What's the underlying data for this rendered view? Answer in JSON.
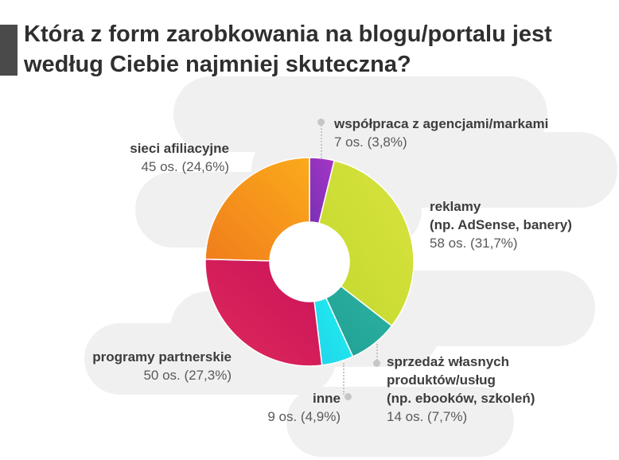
{
  "title": "Która z form zarobkowania na blogu/portalu jest według Ciebie najmniej skuteczna?",
  "colors": {
    "accent": "#4a4a4a",
    "cloud": "#f0f0f0"
  },
  "chart_data": {
    "type": "pie",
    "donut": true,
    "title": "Która z form zarobkowania na blogu/portalu jest według Ciebie najmniej skuteczna?",
    "series": [
      {
        "name": "współpraca z agencjami/markami",
        "count": 7,
        "value": 3.8,
        "value_label": "7 os. (3,8%)",
        "color_start": "#7b2fb5",
        "color_end": "#a736c4"
      },
      {
        "name": "reklamy\n(np. AdSense, banery)",
        "count": 58,
        "value": 31.7,
        "value_label": "58 os. (31,7%)",
        "color_start": "#c2d92e",
        "color_end": "#d9e33e"
      },
      {
        "name": "sprzedaż własnych\nproduktów/usług\n(np. ebooków, szkoleń)",
        "count": 14,
        "value": 7.7,
        "value_label": "14 os. (7,7%)",
        "color_start": "#1f9f92",
        "color_end": "#2db3a3"
      },
      {
        "name": "inne",
        "count": 9,
        "value": 4.9,
        "value_label": "9 os. (4,9%)",
        "color_start": "#22d4ea",
        "color_end": "#1ff0f0"
      },
      {
        "name": "programy partnerskie",
        "count": 50,
        "value": 27.3,
        "value_label": "50 os. (27,3%)",
        "color_start": "#e02a5b",
        "color_end": "#c8125a"
      },
      {
        "name": "sieci afiliacyjne",
        "count": 45,
        "value": 24.6,
        "value_label": "45 os. (24,6%)",
        "color_start": "#f07d1c",
        "color_end": "#fbaa1c"
      }
    ]
  }
}
